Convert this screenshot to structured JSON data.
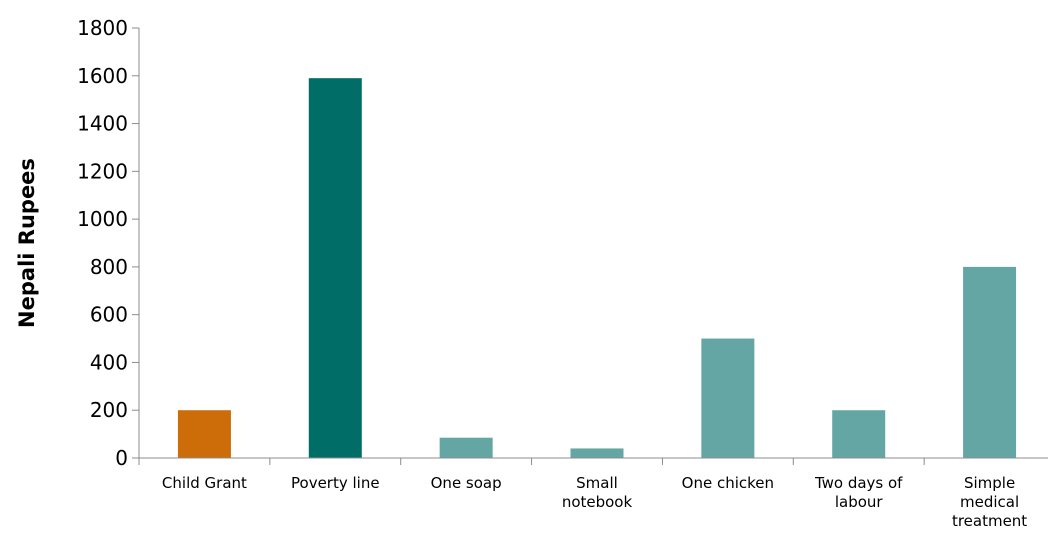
{
  "chart_data": {
    "type": "bar",
    "categories": [
      [
        "Child Grant"
      ],
      [
        "Poverty line"
      ],
      [
        "One soap"
      ],
      [
        "Small",
        "notebook"
      ],
      [
        "One chicken"
      ],
      [
        "Two days of",
        "labour"
      ],
      [
        "Simple",
        "medical",
        "treatment"
      ]
    ],
    "values": [
      200,
      1590,
      85,
      40,
      500,
      200,
      800
    ],
    "bar_colors": [
      "#cc6d0a",
      "#006e66",
      "#63a6a4",
      "#63a6a4",
      "#63a6a4",
      "#63a6a4",
      "#63a6a4"
    ],
    "title": "",
    "xlabel": "",
    "ylabel": "Nepali Rupees",
    "ylim": [
      0,
      1800
    ],
    "yticks": [
      0,
      200,
      400,
      600,
      800,
      1000,
      1200,
      1400,
      1600,
      1800
    ],
    "grid": false,
    "legend": "none"
  }
}
